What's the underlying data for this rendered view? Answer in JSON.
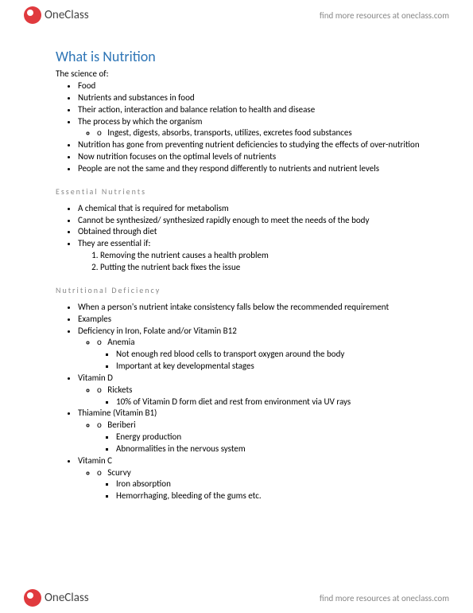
{
  "brand": {
    "name": "OneClass",
    "tagline": "find more resources at oneclass.com"
  },
  "doc": {
    "title": "What is Nutrition",
    "intro": "The science of:",
    "main_bullets": [
      "Food",
      "Nutrients and substances in food",
      "Their action, interaction and balance relation to health and disease",
      "The process by which the organism"
    ],
    "process_sub": "Ingest, digests, absorbs, transports, utilizes, excretes food substances",
    "main_bullets_after": [
      "Nutrition has gone from preventing nutrient deficiencies to studying the effects of over-nutrition",
      "Now nutrition focuses on the optimal levels of nutrients",
      "People are not the same and they respond differently to nutrients and nutrient levels"
    ],
    "essential": {
      "heading": "Essential Nutrients",
      "bullets": [
        "A chemical that is required for metabolism",
        "Cannot be synthesized/ synthesized rapidly enough to meet the needs of the body",
        "Obtained through diet",
        "They are essential if:"
      ],
      "criteria": [
        "Removing the nutrient causes a health problem",
        "Putting the nutrient back fixes the issue"
      ]
    },
    "deficiency": {
      "heading": "Nutritional Deficiency",
      "intro_bullets": [
        "When a person's nutrient intake consistency falls below the recommended requirement",
        "Examples"
      ],
      "iron": {
        "label": "Deficiency in Iron, Folate and/or Vitamin B12",
        "sub": "Anemia",
        "details": [
          "Not enough red blood cells to transport oxygen around the body",
          "Important at key developmental stages"
        ]
      },
      "vitd": {
        "label": "Vitamin D",
        "sub": "Rickets",
        "details": [
          "10% of Vitamin D form diet and rest from environment via UV rays"
        ]
      },
      "thiamine": {
        "label": "Thiamine (Vitamin B1)",
        "sub": "Beriberi",
        "details": [
          "Energy production",
          "Abnormalities in the nervous system"
        ]
      },
      "vitc": {
        "label": "Vitamin C",
        "sub": "Scurvy",
        "details": [
          "Iron absorption",
          "Hemorrhaging, bleeding of the gums etc."
        ]
      }
    }
  }
}
